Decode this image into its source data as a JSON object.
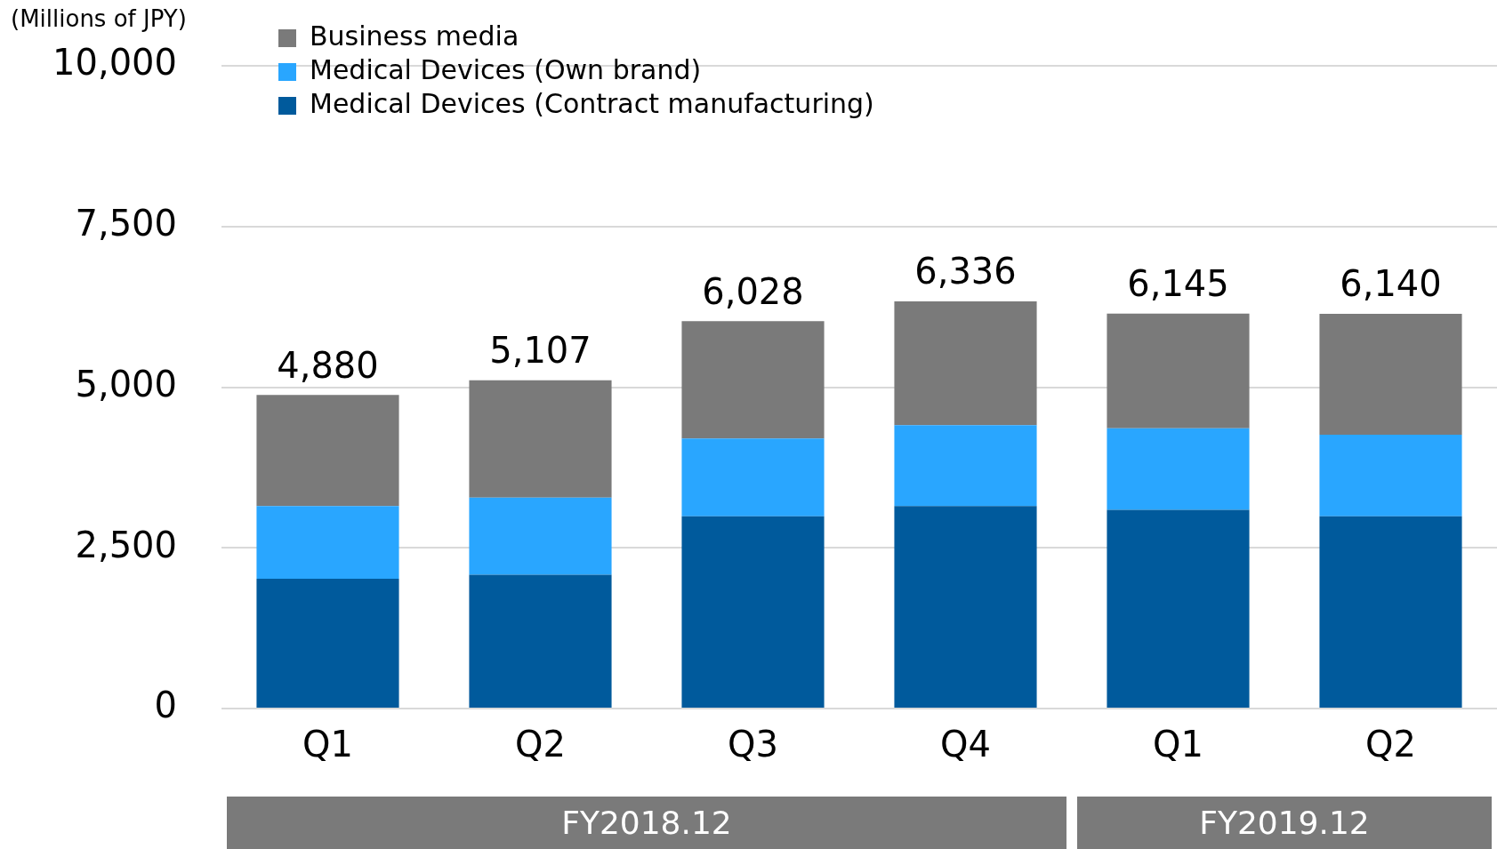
{
  "chart_data": {
    "type": "bar",
    "stacked": true,
    "ylabel": "(Millions of JPY)",
    "categories": [
      "Q1",
      "Q2",
      "Q3",
      "Q4",
      "Q1",
      "Q2"
    ],
    "series": [
      {
        "name": "Medical Devices (Contract manufacturing)",
        "color": "#005a9c",
        "values": [
          2020,
          2080,
          2990,
          3150,
          3090,
          2990
        ]
      },
      {
        "name": "Medical Devices (Own brand)",
        "color": "#29a6ff",
        "values": [
          1130,
          1200,
          1210,
          1260,
          1270,
          1270
        ]
      },
      {
        "name": "Business media",
        "color": "#7a7a7a",
        "values": [
          1730,
          1827,
          1828,
          1926,
          1785,
          1880
        ]
      }
    ],
    "totals": [
      "4,880",
      "5,107",
      "6,028",
      "6,336",
      "6,145",
      "6,140"
    ],
    "ylim": [
      0,
      10000
    ],
    "yticks": [
      0,
      {
        "value": 2500,
        "label": "2,500"
      },
      {
        "value": 5000,
        "label": "5,000"
      },
      {
        "value": 7500,
        "label": "7,500"
      },
      {
        "value": 10000,
        "label": "10,000"
      }
    ],
    "grid": "y",
    "legend": "top left",
    "annotations": [
      "FY2018.12",
      "FY2019.12"
    ]
  }
}
